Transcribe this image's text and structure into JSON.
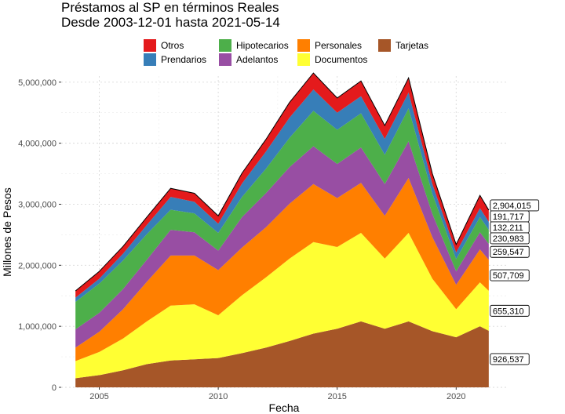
{
  "chart_data": {
    "type": "area",
    "title": "Préstamos al SP en términos Reales",
    "subtitle": "Desde 2003-12-01 hasta 2021-05-14",
    "xlabel": "Fecha",
    "ylabel": "Millones de Pesos",
    "xlim": [
      2003.4,
      2022.2
    ],
    "ylim": [
      0,
      5100000
    ],
    "x_ticks": [
      2005,
      2010,
      2015,
      2020
    ],
    "x_tick_labels": [
      "2005",
      "2010",
      "2015",
      "2020"
    ],
    "y_ticks": [
      0,
      1000000,
      2000000,
      3000000,
      4000000,
      5000000
    ],
    "y_tick_labels": [
      "0",
      "1,000,000",
      "2,000,000",
      "3,000,000",
      "4,000,000",
      "5,000,000"
    ],
    "grid": true,
    "legend_position": "top",
    "x": [
      2004.0,
      2005.0,
      2006.0,
      2007.0,
      2008.0,
      2009.0,
      2010.0,
      2011.0,
      2012.0,
      2013.0,
      2014.0,
      2015.0,
      2016.0,
      2017.0,
      2018.0,
      2019.0,
      2020.0,
      2021.0,
      2021.37
    ],
    "series": [
      {
        "name": "Tarjetas",
        "color": "#A65628",
        "values": [
          150000,
          200000,
          280000,
          380000,
          440000,
          460000,
          480000,
          560000,
          650000,
          760000,
          880000,
          960000,
          1080000,
          960000,
          1080000,
          920000,
          820000,
          1000000,
          926537
        ]
      },
      {
        "name": "Documentos",
        "color": "#FFFF33",
        "values": [
          280000,
          380000,
          520000,
          700000,
          900000,
          900000,
          700000,
          950000,
          1150000,
          1350000,
          1500000,
          1340000,
          1450000,
          1150000,
          1450000,
          860000,
          460000,
          720000,
          655310
        ]
      },
      {
        "name": "Personales",
        "color": "#FF7F00",
        "values": [
          220000,
          330000,
          480000,
          650000,
          820000,
          800000,
          740000,
          780000,
          820000,
          900000,
          950000,
          800000,
          820000,
          700000,
          900000,
          680000,
          400000,
          540000,
          507709
        ]
      },
      {
        "name": "Adelantos",
        "color": "#984EA3",
        "values": [
          300000,
          310000,
          330000,
          360000,
          420000,
          380000,
          320000,
          500000,
          560000,
          600000,
          620000,
          560000,
          580000,
          520000,
          600000,
          380000,
          220000,
          280000,
          259547
        ]
      },
      {
        "name": "Hipotecarios",
        "color": "#4DAF4A",
        "values": [
          450000,
          480000,
          470000,
          420000,
          330000,
          310000,
          290000,
          330000,
          400000,
          480000,
          580000,
          560000,
          560000,
          480000,
          540000,
          330000,
          200000,
          250000,
          230983
        ]
      },
      {
        "name": "Prendarios",
        "color": "#377EB8",
        "values": [
          70000,
          80000,
          110000,
          150000,
          210000,
          190000,
          150000,
          220000,
          280000,
          330000,
          350000,
          280000,
          280000,
          260000,
          260000,
          160000,
          110000,
          145000,
          132211
        ]
      },
      {
        "name": "Otros",
        "color": "#E41A1C",
        "values": [
          110000,
          120000,
          120000,
          130000,
          140000,
          140000,
          130000,
          170000,
          200000,
          250000,
          270000,
          240000,
          250000,
          220000,
          240000,
          170000,
          130000,
          210000,
          191717
        ]
      }
    ],
    "end_labels": [
      "2,904,015",
      "191,717",
      "132,211",
      "230,983",
      "259,547",
      "507,709",
      "655,310",
      "926,537"
    ]
  }
}
